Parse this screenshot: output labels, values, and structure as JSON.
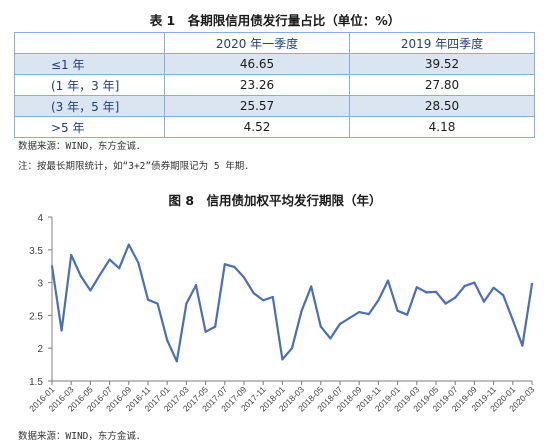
{
  "table": {
    "title": "表 1　各期限信用债发行量占比（单位：%）",
    "headers": [
      "",
      "2020 年一季度",
      "2019 年四季度"
    ],
    "rows": [
      {
        "label": "≤1 年",
        "q1_2020": "46.65",
        "q4_2019": "39.52"
      },
      {
        "label": "(1 年，3 年]",
        "q1_2020": "23.26",
        "q4_2019": "27.80"
      },
      {
        "label": "(3 年，5 年]",
        "q1_2020": "25.57",
        "q4_2019": "28.50"
      },
      {
        "label": ">5 年",
        "q1_2020": "4.52",
        "q4_2019": "4.18"
      }
    ],
    "source": "数据来源：WIND，东方金诚．",
    "note": "注：按最长期限统计，如“3+2”债券期限记为 5 年期．"
  },
  "chart": {
    "title": "图 8　信用债加权平均发行期限（年）",
    "source": "数据来源：WIND，东方金诚．"
  },
  "chart_data": {
    "type": "line",
    "title": "图 8　信用债加权平均发行期限（年）",
    "xlabel": "",
    "ylabel": "",
    "ylim": [
      1.5,
      4
    ],
    "yticks": [
      "1.5",
      "2",
      "2.5",
      "3",
      "3.5",
      "4"
    ],
    "color": "#4a6fb5",
    "x": [
      "2016-01",
      "2016-02",
      "2016-03",
      "2016-04",
      "2016-05",
      "2016-06",
      "2016-07",
      "2016-08",
      "2016-09",
      "2016-10",
      "2016-11",
      "2016-12",
      "2017-01",
      "2017-02",
      "2017-03",
      "2017-04",
      "2017-05",
      "2017-06",
      "2017-07",
      "2017-08",
      "2017-09",
      "2017-10",
      "2017-11",
      "2017-12",
      "2018-01",
      "2018-02",
      "2018-03",
      "2018-04",
      "2018-05",
      "2018-06",
      "2018-07",
      "2018-08",
      "2018-09",
      "2018-10",
      "2018-11",
      "2018-12",
      "2019-01",
      "2019-02",
      "2019-03",
      "2019-04",
      "2019-05",
      "2019-06",
      "2019-07",
      "2019-08",
      "2019-09",
      "2019-10",
      "2019-11",
      "2019-12",
      "2020-01",
      "2020-02",
      "2020-03"
    ],
    "xticks": [
      "2016-01",
      "2016-03",
      "2016-05",
      "2016-07",
      "2016-09",
      "2016-11",
      "2017-01",
      "2017-03",
      "2017-05",
      "2017-07",
      "2017-09",
      "2017-11",
      "2018-01",
      "2018-03",
      "2018-05",
      "2018-07",
      "2018-09",
      "2018-11",
      "2019-01",
      "2019-03",
      "2019-05",
      "2019-07",
      "2019-09",
      "2019-11",
      "2020-01",
      "2020-03"
    ],
    "values": [
      3.25,
      2.27,
      3.42,
      3.1,
      2.88,
      3.12,
      3.35,
      3.22,
      3.58,
      3.3,
      2.74,
      2.68,
      2.12,
      1.8,
      2.68,
      2.96,
      2.25,
      2.33,
      3.28,
      3.24,
      3.08,
      2.84,
      2.73,
      2.78,
      1.83,
      2.0,
      2.57,
      2.94,
      2.33,
      2.15,
      2.37,
      2.46,
      2.55,
      2.52,
      2.73,
      3.03,
      2.57,
      2.51,
      2.93,
      2.85,
      2.86,
      2.68,
      2.77,
      2.95,
      3.0,
      2.71,
      2.92,
      2.81,
      2.43,
      2.04,
      2.98
    ]
  }
}
